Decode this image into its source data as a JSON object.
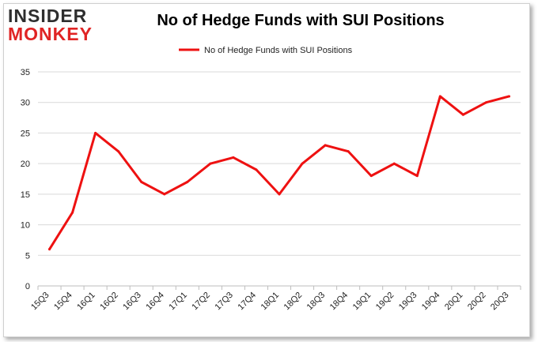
{
  "logo": {
    "line1": "INSIDER",
    "line2": "MONKEY"
  },
  "chart_data": {
    "type": "line",
    "title": "No of Hedge Funds with SUI Positions",
    "categories": [
      "15Q3",
      "15Q4",
      "16Q1",
      "16Q2",
      "16Q3",
      "16Q4",
      "17Q1",
      "17Q2",
      "17Q3",
      "17Q4",
      "18Q1",
      "18Q2",
      "18Q3",
      "18Q4",
      "19Q1",
      "19Q2",
      "19Q3",
      "19Q4",
      "20Q1",
      "20Q2",
      "20Q3"
    ],
    "series": [
      {
        "name": "No of Hedge Funds with SUI Positions",
        "values": [
          6,
          12,
          25,
          22,
          17,
          15,
          17,
          20,
          21,
          19,
          15,
          20,
          23,
          22,
          18,
          20,
          18,
          31,
          28,
          30,
          31
        ],
        "color": "#ee1111"
      }
    ],
    "ylim": [
      0,
      35
    ],
    "yticks": [
      0,
      5,
      10,
      15,
      20,
      25,
      30,
      35
    ],
    "grid": true,
    "legend": "top-center"
  }
}
